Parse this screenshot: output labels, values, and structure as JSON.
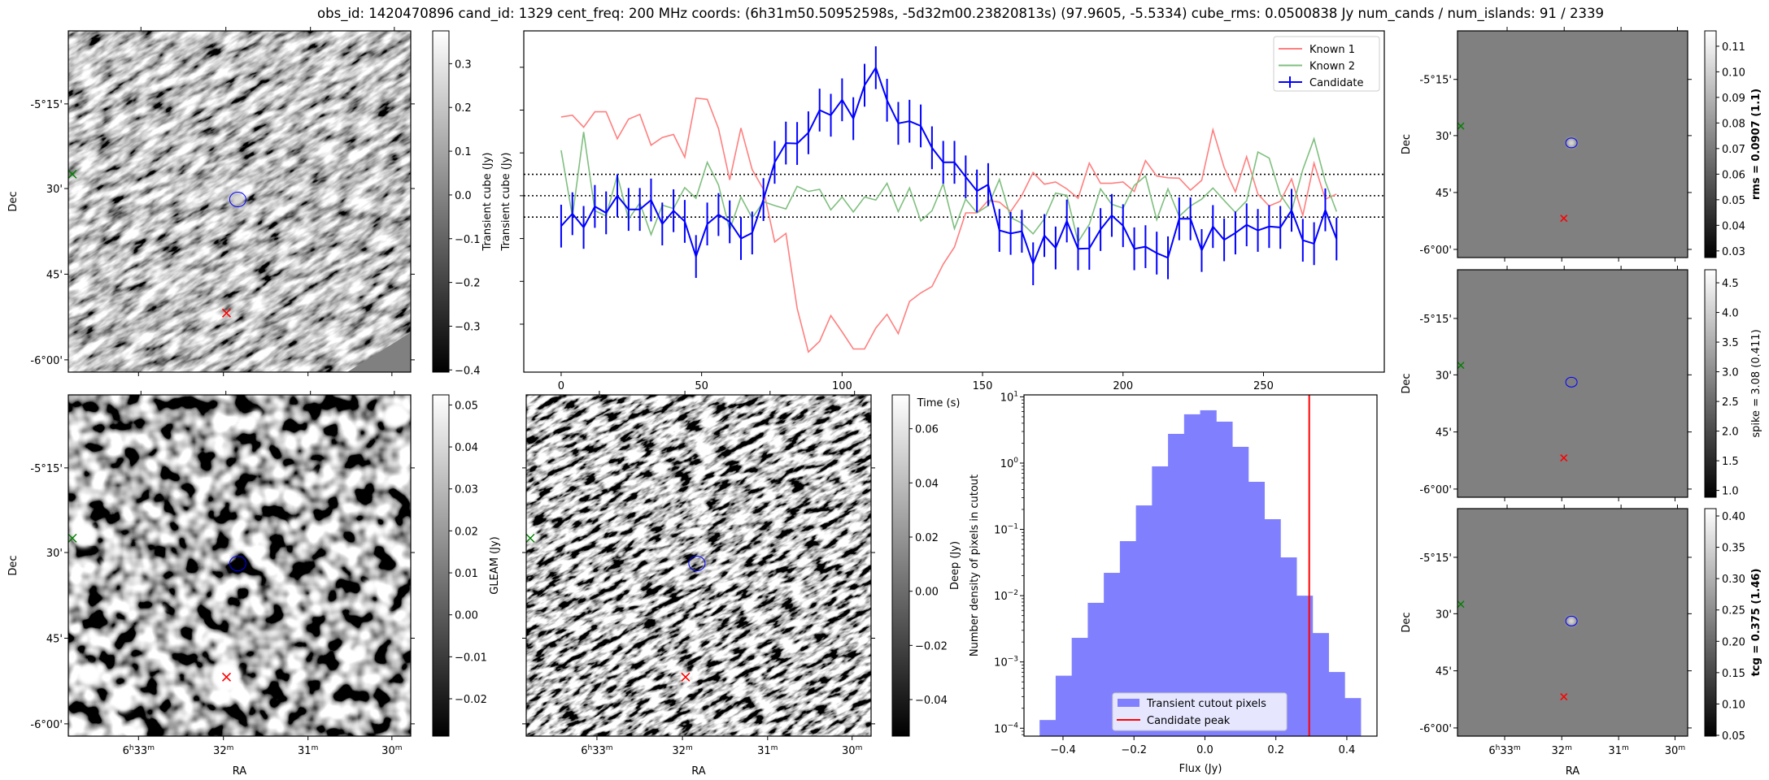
{
  "title": "obs_id: 1420470896 cand_id: 1329 cent_freq: 200 MHz coords: (6h31m50.50952598s, -5d32m00.23820813s) (97.9605, -5.5334) cube_rms: 0.0500838 Jy num_cands / num_islands: 91 / 2339",
  "axes": {
    "dec_label": "Dec",
    "ra_label": "RA",
    "dec_ticks": [
      "-5°15'",
      "30'",
      "45'",
      "-6°00'"
    ],
    "ra_ticks": [
      {
        "main": "6",
        "sup1": "h",
        "mid": "33",
        "sup2": "m"
      },
      {
        "main": "",
        "sup1": "",
        "mid": "32",
        "sup2": "m"
      },
      {
        "main": "",
        "sup1": "",
        "mid": "31",
        "sup2": "m"
      },
      {
        "main": "",
        "sup1": "",
        "mid": "30",
        "sup2": "m"
      }
    ]
  },
  "panels": {
    "transient": {
      "colorbar_label": "Transient cube (Jy)",
      "range": [
        -0.405,
        0.375
      ],
      "ticks": [
        "0.3",
        "0.2",
        "0.1",
        "0.0",
        "−0.1",
        "−0.2",
        "−0.3",
        "−0.4"
      ],
      "tick_values": [
        0.3,
        0.2,
        0.1,
        0.0,
        -0.1,
        -0.2,
        -0.3,
        -0.4
      ]
    },
    "gleam": {
      "colorbar_label": "GLEAM (Jy)",
      "range": [
        -0.0289,
        0.0524
      ],
      "ticks": [
        "0.05",
        "0.04",
        "0.03",
        "0.02",
        "0.01",
        "0.00",
        "−0.01",
        "−0.02"
      ],
      "tick_values": [
        0.05,
        0.04,
        0.03,
        0.02,
        0.01,
        0.0,
        -0.01,
        -0.02
      ]
    },
    "deep": {
      "colorbar_label": "Deep (Jy)",
      "range": [
        -0.0535,
        0.0725
      ],
      "ticks": [
        "0.06",
        "0.04",
        "0.02",
        "0.00",
        "−0.02",
        "−0.04"
      ],
      "tick_values": [
        0.06,
        0.04,
        0.02,
        0.0,
        -0.02,
        -0.04
      ]
    },
    "rms": {
      "colorbar_label": "rms = 0.0907 (1.1)",
      "bold": true,
      "range": [
        0.0274,
        0.116
      ],
      "ticks": [
        "0.11",
        "0.10",
        "0.09",
        "0.08",
        "0.07",
        "0.06",
        "0.05",
        "0.04",
        "0.03"
      ],
      "tick_values": [
        0.11,
        0.1,
        0.09,
        0.08,
        0.07,
        0.06,
        0.05,
        0.04,
        0.03
      ]
    },
    "spike": {
      "colorbar_label": "spike = 3.08 (0.411)",
      "bold": false,
      "range": [
        0.885,
        4.72
      ],
      "ticks": [
        "4.5",
        "4.0",
        "3.5",
        "3.0",
        "2.5",
        "2.0",
        "1.5",
        "1.0"
      ],
      "tick_values": [
        4.5,
        4.0,
        3.5,
        3.0,
        2.5,
        2.0,
        1.5,
        1.0
      ]
    },
    "tcg": {
      "colorbar_label": "tcg = 0.375 (1.46)",
      "bold": true,
      "range": [
        0.0487,
        0.4117
      ],
      "ticks": [
        "0.40",
        "0.35",
        "0.30",
        "0.25",
        "0.20",
        "0.15",
        "0.10",
        "0.05"
      ],
      "tick_values": [
        0.4,
        0.35,
        0.3,
        0.25,
        0.2,
        0.15,
        0.1,
        0.05
      ]
    }
  },
  "colors": {
    "known1": "#ff7f7f",
    "known2": "#7fbf7f",
    "candidate": "#0000ff",
    "hist": "#8080ff",
    "peak": "#ff0000",
    "contour": "#0000ff",
    "marker_red": "#ff0000",
    "marker_green": "#008000"
  },
  "chart_data": [
    {
      "type": "line",
      "title": "",
      "xlabel": "Time (s)",
      "ylabel": "Transient cube (Jy)",
      "xlim": [
        -13.3,
        293
      ],
      "ylim": [
        -0.412,
        0.385
      ],
      "xticks": [
        0,
        50,
        100,
        150,
        200,
        250
      ],
      "yticks": [
        0.3,
        0.2,
        0.1,
        0.0,
        -0.1,
        -0.2,
        -0.3
      ],
      "hlines": [
        0.05,
        0.0,
        -0.05
      ],
      "legend": "top-right",
      "time_step": 4,
      "series": [
        {
          "name": "Known 1",
          "values": [
            0.184,
            0.188,
            0.16,
            0.196,
            0.196,
            0.133,
            0.179,
            0.19,
            0.118,
            0.136,
            0.143,
            0.09,
            0.228,
            0.225,
            0.157,
            0.037,
            0.158,
            0.061,
            0.015,
            -0.108,
            -0.088,
            -0.263,
            -0.365,
            -0.34,
            -0.28,
            -0.318,
            -0.358,
            -0.358,
            -0.309,
            -0.277,
            -0.322,
            -0.247,
            -0.227,
            -0.212,
            -0.16,
            -0.12,
            -0.04,
            -0.04,
            -0.011,
            -0.015,
            -0.037,
            0.001,
            0.054,
            0.027,
            0.032,
            0.016,
            -0.006,
            0.076,
            0.029,
            0.029,
            0.032,
            0.01,
            0.082,
            0.046,
            0.042,
            0.041,
            0.013,
            0.036,
            0.154,
            0.066,
            0.009,
            0.091,
            0.004,
            -0.024,
            -0.013,
            0.039,
            -0.046,
            0.076,
            -0.008,
            0.004
          ]
        },
        {
          "name": "Known 2",
          "values": [
            0.106,
            -0.049,
            0.149,
            -0.035,
            -0.047,
            0.048,
            -0.055,
            -0.017,
            -0.091,
            -0.022,
            -0.03,
            0.019,
            -0.006,
            0.078,
            0.025,
            -0.08,
            -0.003,
            -0.052,
            -0.014,
            -0.023,
            -0.031,
            0.022,
            0.01,
            0.015,
            -0.033,
            -0.003,
            -0.038,
            -0.003,
            -0.01,
            0.029,
            -0.037,
            0.018,
            -0.059,
            -0.035,
            0.028,
            -0.077,
            -0.008,
            -0.04,
            -0.023,
            0.038,
            -0.051,
            -0.064,
            -0.089,
            -0.054,
            0.006,
            0.001,
            -0.108,
            -0.067,
            0.016,
            -0.02,
            -0.029,
            0.024,
            0.046,
            -0.056,
            0.016,
            -0.048,
            -0.024,
            -0.008,
            0.018,
            -0.011,
            -0.039,
            -0.012,
            0.102,
            0.088,
            0.002,
            -0.036,
            0.061,
            0.133,
            0.033,
            -0.037
          ]
        },
        {
          "name": "Candidate",
          "error": 0.05,
          "values": [
            -0.071,
            -0.042,
            -0.074,
            -0.025,
            -0.04,
            0,
            -0.032,
            -0.032,
            -0.01,
            -0.066,
            -0.035,
            -0.06,
            -0.142,
            -0.066,
            -0.044,
            -0.061,
            -0.1,
            -0.087,
            -0.009,
            0.078,
            0.123,
            0.122,
            0.147,
            0.2,
            0.188,
            0.224,
            0.18,
            0.258,
            0.299,
            0.223,
            0.169,
            0.174,
            0.163,
            0.112,
            0.078,
            0.078,
            0.044,
            0.011,
            0.026,
            -0.081,
            -0.088,
            -0.083,
            -0.159,
            -0.093,
            -0.122,
            -0.059,
            -0.124,
            -0.123,
            -0.079,
            -0.046,
            -0.07,
            -0.124,
            -0.119,
            -0.134,
            -0.145,
            -0.054,
            -0.054,
            -0.128,
            -0.072,
            -0.103,
            -0.087,
            -0.068,
            -0.081,
            -0.072,
            -0.074,
            -0.034,
            -0.104,
            -0.112,
            -0.033,
            -0.101
          ]
        }
      ]
    },
    {
      "type": "bar",
      "title": "",
      "xlabel": "Flux (Jy)",
      "ylabel": "Number density of pixels in cutout",
      "yscale": "log",
      "xlim": [
        -0.51,
        0.485
      ],
      "ylim": [
        7.6e-05,
        10.7
      ],
      "xticks": [
        -0.4,
        -0.2,
        0.0,
        0.2,
        0.4
      ],
      "xtick_labels": [
        "−0.4",
        "−0.2",
        "0.0",
        "0.2",
        "0.4"
      ],
      "yticks": [
        10.0,
        1.0,
        0.1,
        0.01,
        0.001,
        0.0001
      ],
      "ytick_exponents": [
        "1",
        "0",
        "−1",
        "−2",
        "−3",
        "−4"
      ],
      "bin_start": -0.466,
      "bin_width": 0.04525,
      "values": [
        0.000133,
        0.00062,
        0.00231,
        0.0078,
        0.0221,
        0.0665,
        0.23,
        0.893,
        2.76,
        5.45,
        6.27,
        4.22,
        1.76,
        0.522,
        0.1425,
        0.0378,
        0.01,
        0.00273,
        0.000705,
        0.000285
      ],
      "peak_line": 0.294,
      "legend": "lower-center",
      "series_names": [
        "Transient cutout pixels",
        "Candidate peak"
      ]
    }
  ]
}
